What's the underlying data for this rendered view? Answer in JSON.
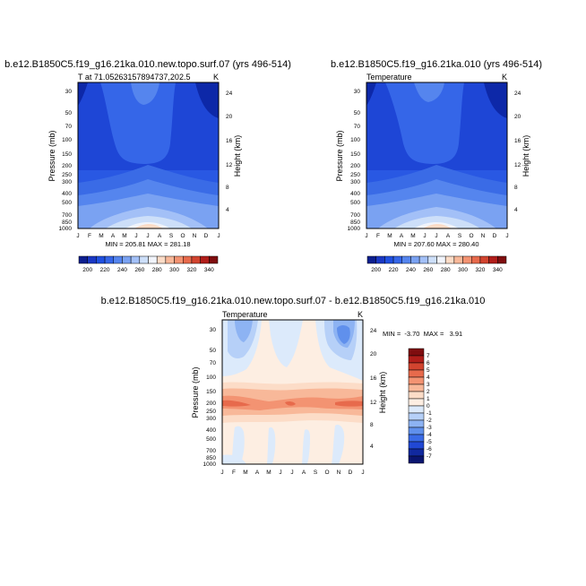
{
  "panels": [
    {
      "id": "p1",
      "title": "b.e12.B1850C5.f19_g16.21ka.010.new.topo.surf.07 (yrs 496-514)",
      "left_label": "T at 71.05263157894737,202.5",
      "right_label": "K",
      "ylabel": "Pressure (mb)",
      "y2label": "Height (km)",
      "minmax": "MIN = 205.81  MAX = 281.18"
    },
    {
      "id": "p2",
      "title": "b.e12.B1850C5.f19_g16.21ka.010 (yrs 496-514)",
      "left_label": "Temperature",
      "right_label": "K",
      "ylabel": "Pressure (mb)",
      "y2label": "Height (km)",
      "minmax": "MIN = 207.60  MAX = 280.40"
    },
    {
      "id": "p3",
      "title": "b.e12.B1850C5.f19_g16.21ka.010.new.topo.surf.07 - b.e12.B1850C5.f19_g16.21ka.010",
      "left_label": "Temperature",
      "right_label": "K",
      "ylabel": "Pressure (mb)",
      "y2label": "Height (km)",
      "minmax": "MIN =  -3.70  MAX =   3.91"
    }
  ],
  "chart_data": [
    {
      "type": "heatmap",
      "title": "b.e12.B1850C5.f19_g16.21ka.010.new.topo.surf.07 (yrs 496-514)",
      "subtitle": "T at 71.05263157894737,202.5",
      "units": "K",
      "xlabel": "",
      "ylabel": "Pressure (mb)",
      "y2label": "Height (km)",
      "x_ticks": [
        "J",
        "F",
        "M",
        "A",
        "M",
        "J",
        "J",
        "A",
        "S",
        "O",
        "N",
        "D",
        "J"
      ],
      "y_ticks": [
        "30",
        "50",
        "70",
        "100",
        "150",
        "200",
        "250",
        "300",
        "400",
        "500",
        "700",
        "850",
        "1000"
      ],
      "y2_ticks": [
        "4",
        "8",
        "12",
        "16",
        "20",
        "24"
      ],
      "ylim": [
        1000,
        25
      ],
      "min": 205.81,
      "max": 281.18
    },
    {
      "type": "heatmap",
      "title": "b.e12.B1850C5.f19_g16.21ka.010 (yrs 496-514)",
      "subtitle": "Temperature",
      "units": "K",
      "xlabel": "",
      "ylabel": "Pressure (mb)",
      "y2label": "Height (km)",
      "x_ticks": [
        "J",
        "F",
        "M",
        "A",
        "M",
        "J",
        "J",
        "A",
        "S",
        "O",
        "N",
        "D",
        "J"
      ],
      "y_ticks": [
        "30",
        "50",
        "70",
        "100",
        "150",
        "200",
        "250",
        "300",
        "400",
        "500",
        "700",
        "850",
        "1000"
      ],
      "y2_ticks": [
        "4",
        "8",
        "12",
        "16",
        "20",
        "24"
      ],
      "ylim": [
        1000,
        25
      ],
      "min": 207.6,
      "max": 280.4
    },
    {
      "type": "heatmap",
      "title": "b.e12.B1850C5.f19_g16.21ka.010.new.topo.surf.07 - b.e12.B1850C5.f19_g16.21ka.010",
      "subtitle": "Temperature",
      "units": "K",
      "xlabel": "",
      "ylabel": "Pressure (mb)",
      "y2label": "Height (km)",
      "x_ticks": [
        "J",
        "F",
        "M",
        "A",
        "M",
        "J",
        "J",
        "A",
        "S",
        "O",
        "N",
        "D",
        "J"
      ],
      "y_ticks": [
        "30",
        "50",
        "70",
        "100",
        "150",
        "200",
        "250",
        "300",
        "400",
        "500",
        "700",
        "850",
        "1000"
      ],
      "y2_ticks": [
        "4",
        "8",
        "12",
        "16",
        "20",
        "24"
      ],
      "ylim": [
        1000,
        25
      ],
      "min": -3.7,
      "max": 3.91
    }
  ],
  "colorbar_abs": {
    "labels": [
      "200",
      "220",
      "240",
      "260",
      "280",
      "300",
      "320",
      "340"
    ],
    "colors": [
      "#0d1f8f",
      "#1a38c4",
      "#2050e0",
      "#3566e8",
      "#5585ee",
      "#7aa2f2",
      "#a3c0f7",
      "#cddff9",
      "#f1f4fb",
      "#fcdcc7",
      "#f8b899",
      "#f39372",
      "#e76a4c",
      "#d2442f",
      "#b11e1a",
      "#7f0d0f"
    ]
  },
  "colorbar_diff": {
    "labels": [
      "7",
      "6",
      "5",
      "4",
      "3",
      "2",
      "1",
      "0",
      "-1",
      "-2",
      "-3",
      "-4",
      "-5",
      "-6",
      "-7"
    ],
    "colors": [
      "#7f0d0f",
      "#b11e1a",
      "#d2442f",
      "#e76a4c",
      "#f39372",
      "#f8b899",
      "#fcdcc7",
      "#fdeee2",
      "#dceafb",
      "#b6d0f8",
      "#8db3f3",
      "#6090ec",
      "#3a6be6",
      "#2148d4",
      "#11299f",
      "#0a1570"
    ]
  }
}
